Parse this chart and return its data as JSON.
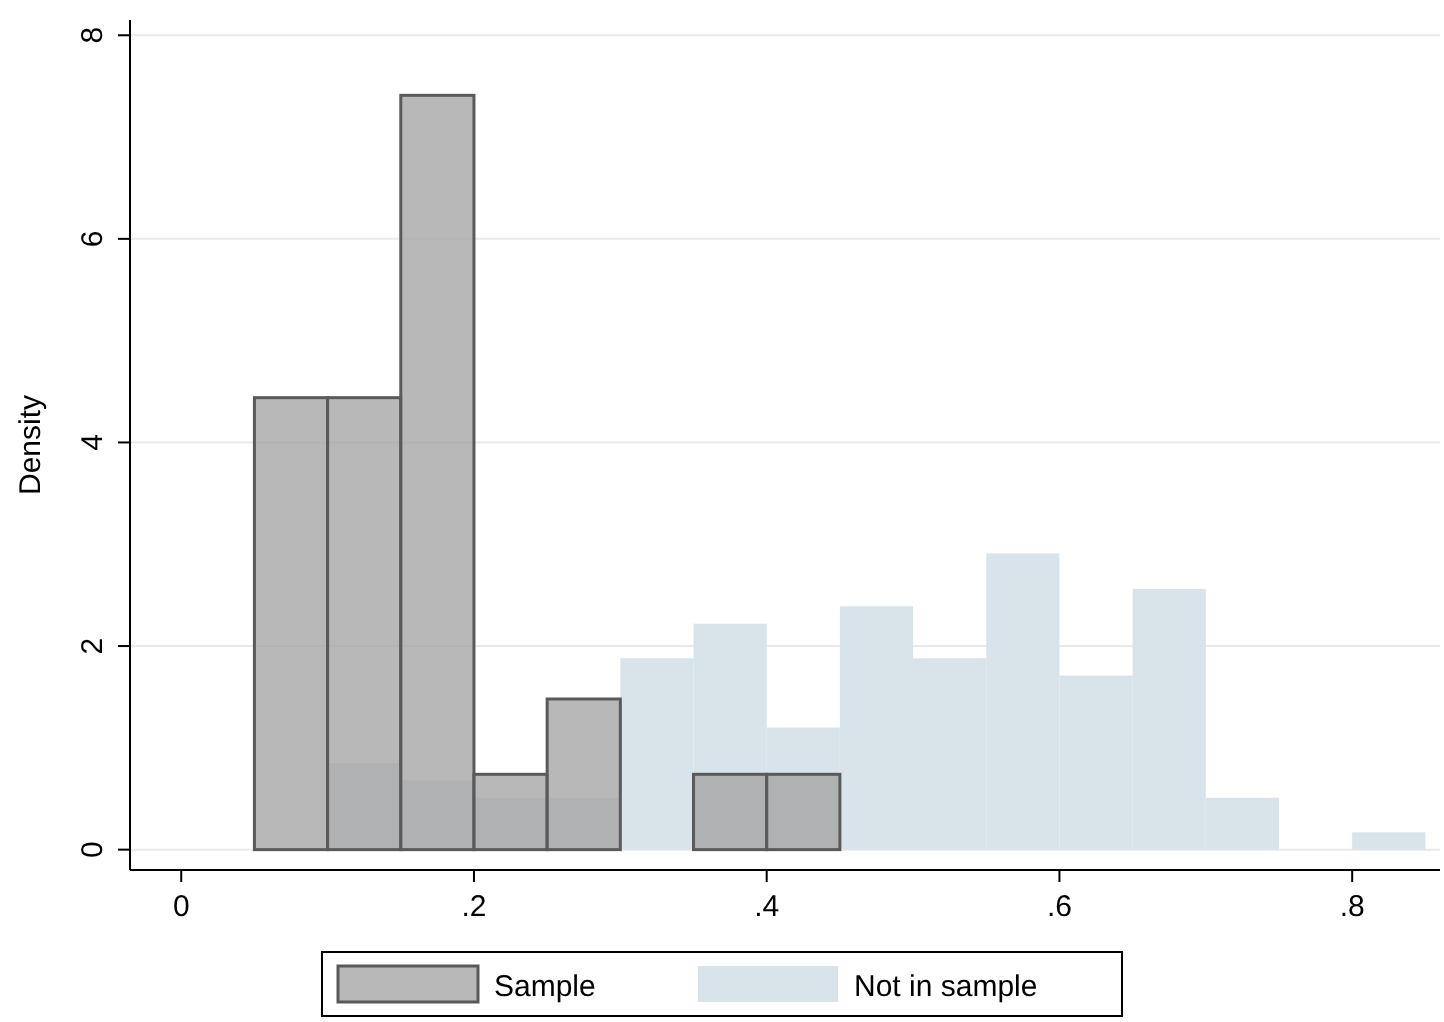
{
  "chart_data": {
    "type": "histogram",
    "ylabel": "Density",
    "bins": [
      0.05,
      0.1,
      0.15,
      0.2,
      0.25,
      0.3,
      0.35,
      0.4,
      0.45,
      0.5,
      0.55,
      0.6,
      0.65,
      0.7,
      0.75,
      0.8,
      0.85
    ],
    "series": [
      {
        "name": "Sample",
        "color": "#a0a0a0",
        "values": [
          4.44,
          4.44,
          7.41,
          0.74,
          1.48,
          0,
          0.74,
          0.74,
          0,
          0,
          0,
          0,
          0,
          0,
          0,
          0
        ]
      },
      {
        "name": "Not in sample",
        "color": "#d9e4ea",
        "values": [
          0,
          0.85,
          0.68,
          0.51,
          0.51,
          1.88,
          2.22,
          1.2,
          2.39,
          1.88,
          2.91,
          1.71,
          2.56,
          0.51,
          0,
          0.17
        ]
      }
    ],
    "xlim": [
      -0.035,
      0.86
    ],
    "ylim": [
      -0.2,
      8.15
    ],
    "xticks": [
      0,
      {
        "value": 0.2,
        "label": ".2"
      },
      {
        "value": 0.4,
        "label": ".4"
      },
      {
        "value": 0.6,
        "label": ".6"
      },
      {
        "value": 0.8,
        "label": ".8"
      }
    ],
    "yticks": [
      0,
      2,
      4,
      6,
      8
    ],
    "grid": "y",
    "legend": "bottom"
  }
}
